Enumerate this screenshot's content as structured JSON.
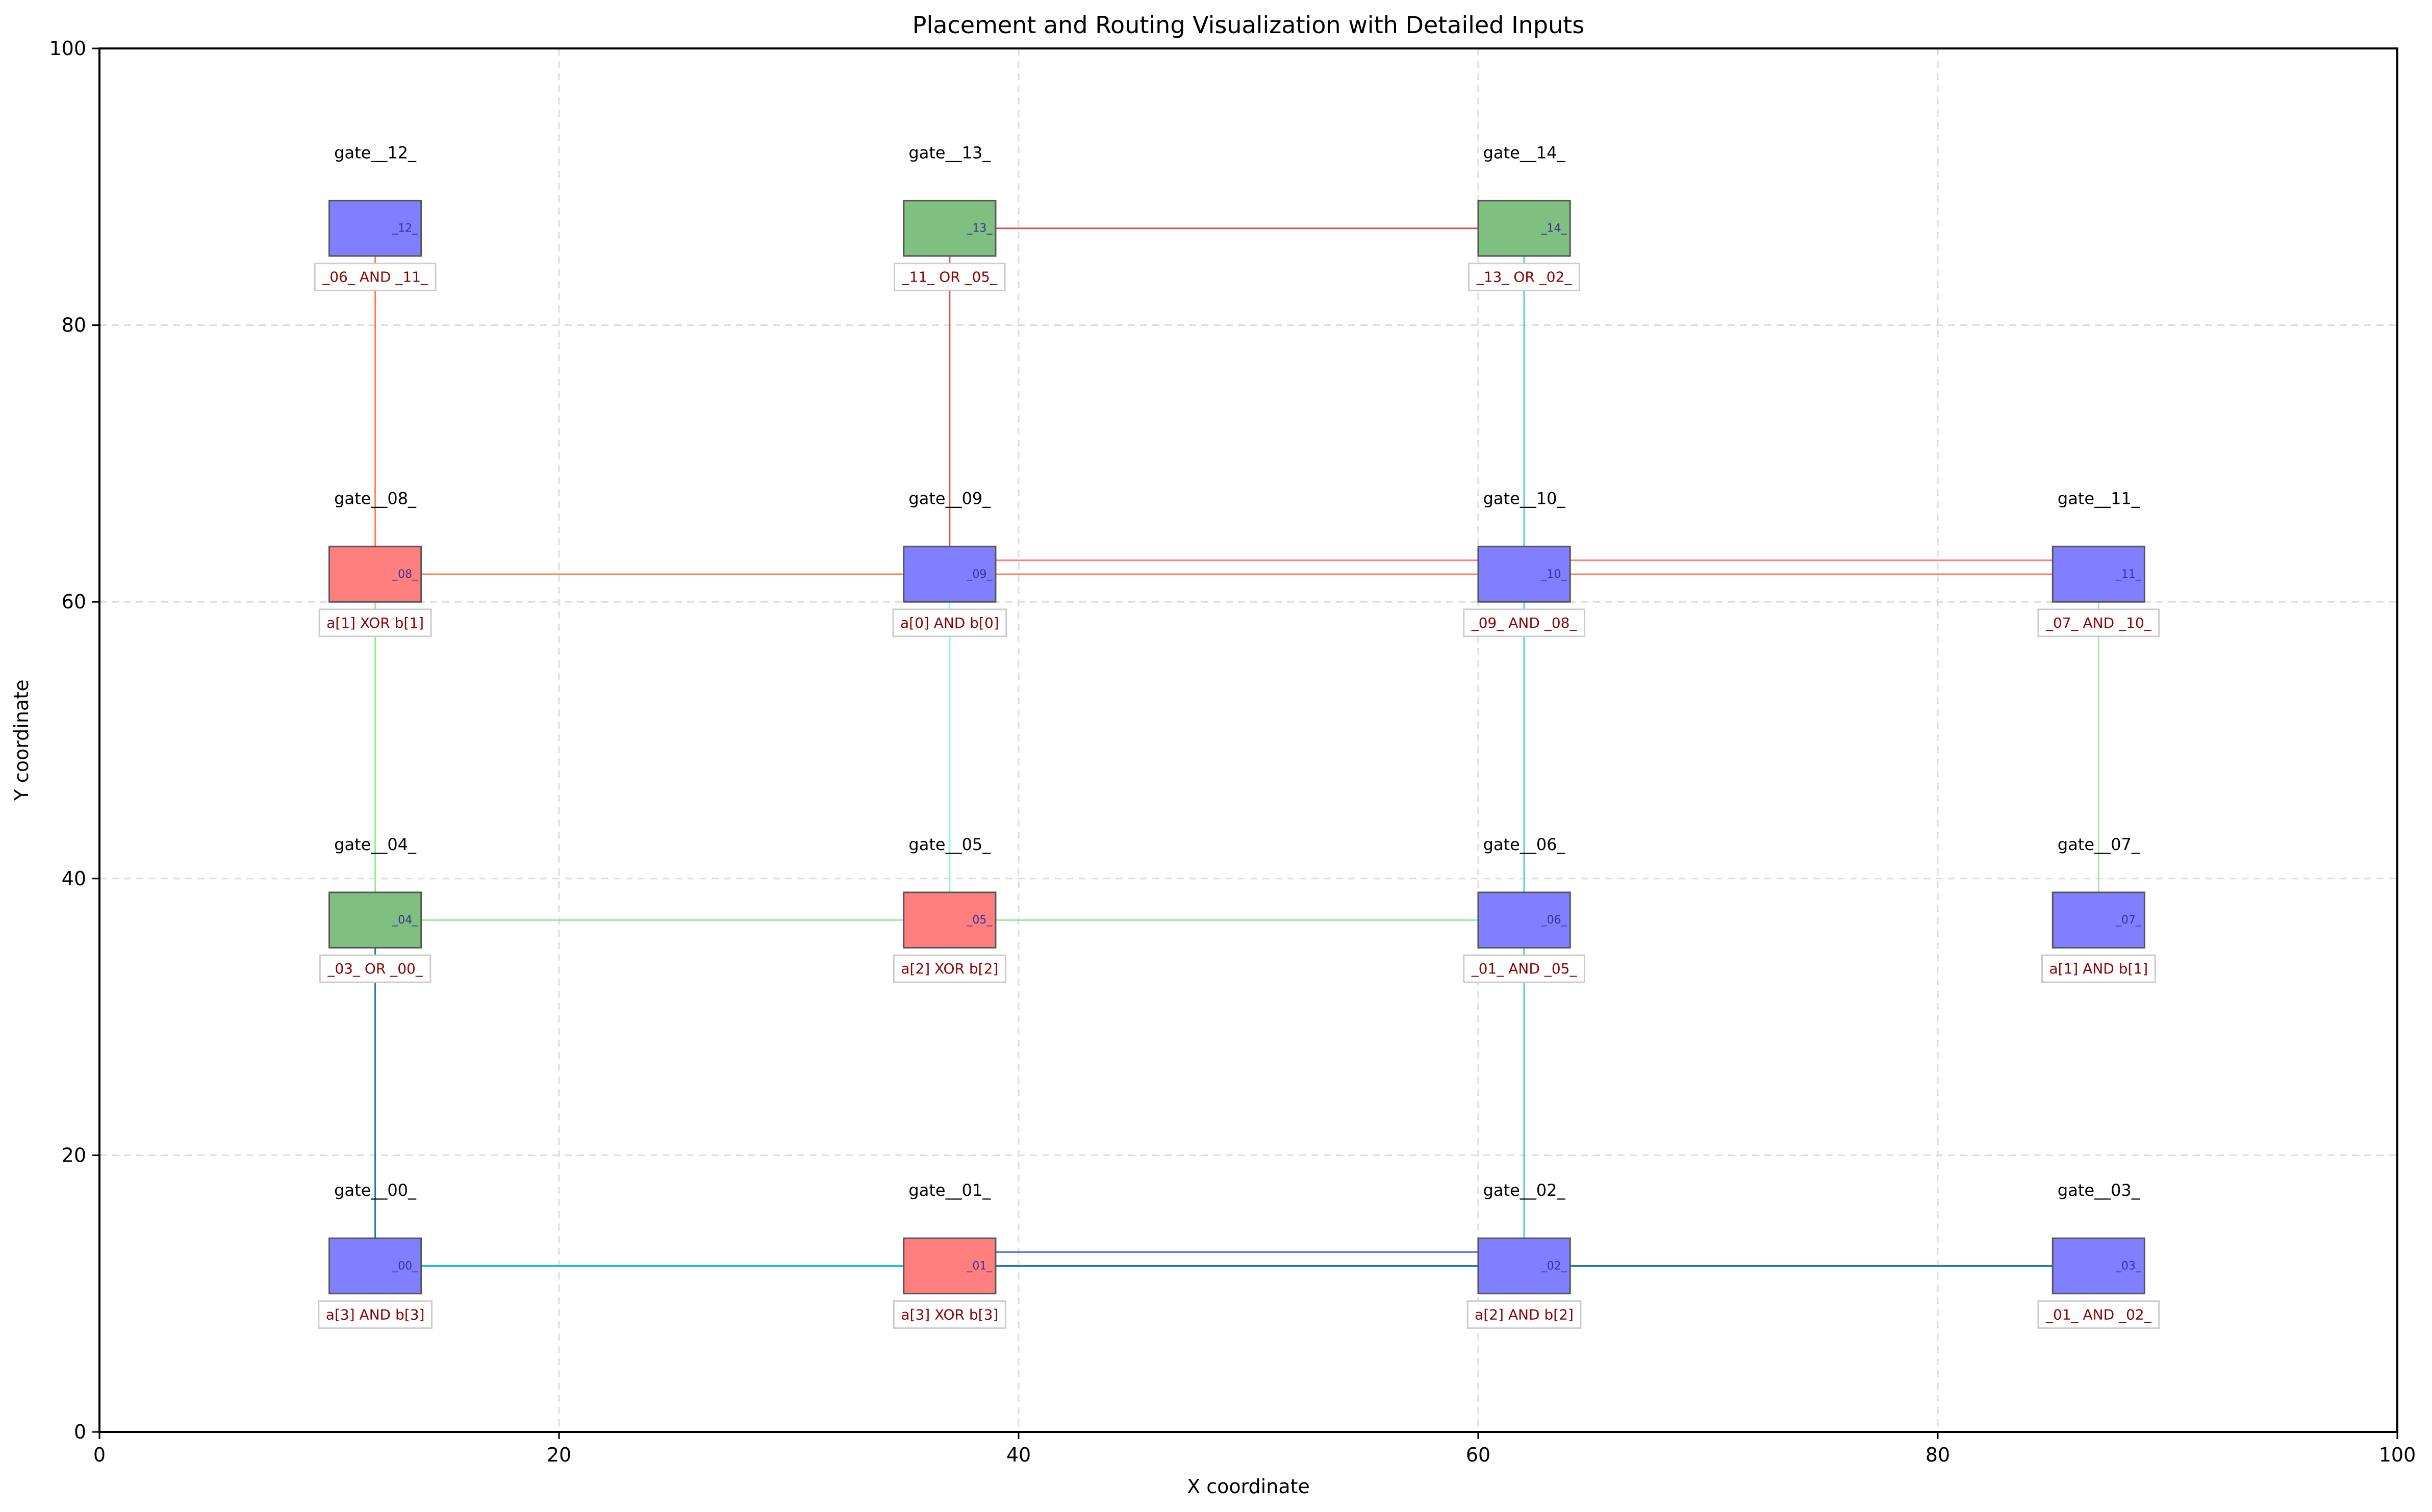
{
  "chart_data": {
    "type": "scatter",
    "title": "Placement and Routing Visualization with Detailed Inputs",
    "xlabel": "X coordinate",
    "ylabel": "Y coordinate",
    "xlim": [
      0,
      100
    ],
    "ylim": [
      0,
      100
    ],
    "xticks": [
      0,
      20,
      40,
      60,
      80,
      100
    ],
    "yticks": [
      0,
      20,
      40,
      60,
      80,
      100
    ],
    "grid": true,
    "colors": {
      "AND": "#7f7fff",
      "XOR": "#ff7f7f",
      "OR": "#7fbf7f",
      "label_text": "#8b0000"
    },
    "gates": [
      {
        "name": "gate__00_",
        "expr": "a[3] AND b[3]",
        "type": "AND",
        "x": 10,
        "y": 10,
        "pin": "_00_"
      },
      {
        "name": "gate__01_",
        "expr": "a[3] XOR b[3]",
        "type": "XOR",
        "x": 35,
        "y": 10,
        "pin": "_01_"
      },
      {
        "name": "gate__02_",
        "expr": "a[2] AND b[2]",
        "type": "AND",
        "x": 60,
        "y": 10,
        "pin": "_02_"
      },
      {
        "name": "gate__03_",
        "expr": "_01_ AND _02_",
        "type": "AND",
        "x": 85,
        "y": 10,
        "pin": "_03_"
      },
      {
        "name": "gate__04_",
        "expr": "_03_ OR _00_",
        "type": "OR",
        "x": 10,
        "y": 35,
        "pin": "_04_"
      },
      {
        "name": "gate__05_",
        "expr": "a[2] XOR b[2]",
        "type": "XOR",
        "x": 35,
        "y": 35,
        "pin": "_05_"
      },
      {
        "name": "gate__06_",
        "expr": "_01_ AND _05_",
        "type": "AND",
        "x": 60,
        "y": 35,
        "pin": "_06_"
      },
      {
        "name": "gate__07_",
        "expr": "a[1] AND b[1]",
        "type": "AND",
        "x": 85,
        "y": 35,
        "pin": "_07_"
      },
      {
        "name": "gate__08_",
        "expr": "a[1] XOR b[1]",
        "type": "XOR",
        "x": 10,
        "y": 60,
        "pin": "_08_"
      },
      {
        "name": "gate__09_",
        "expr": "a[0] AND b[0]",
        "type": "AND",
        "x": 35,
        "y": 60,
        "pin": "_09_"
      },
      {
        "name": "gate__10_",
        "expr": "_09_ AND _08_",
        "type": "AND",
        "x": 60,
        "y": 60,
        "pin": "_10_"
      },
      {
        "name": "gate__11_",
        "expr": "_07_ AND _10_",
        "type": "AND",
        "x": 85,
        "y": 60,
        "pin": "_11_"
      },
      {
        "name": "gate__12_",
        "expr": "_06_ AND _11_",
        "type": "AND",
        "x": 10,
        "y": 85,
        "pin": "_12_"
      },
      {
        "name": "gate__13_",
        "expr": "_11_ OR _05_",
        "type": "OR",
        "x": 35,
        "y": 85,
        "pin": "_13_"
      },
      {
        "name": "gate__14_",
        "expr": "_13_ OR _02_",
        "type": "OR",
        "x": 60,
        "y": 85,
        "pin": "_14_"
      }
    ],
    "nets": [
      {
        "color": "#1f77b4",
        "points": [
          [
            12,
            13
          ],
          [
            12,
            37
          ]
        ]
      },
      {
        "color": "#3aa3d8",
        "points": [
          [
            62,
            13
          ],
          [
            62,
            87
          ]
        ]
      },
      {
        "color": "#1f77b4",
        "points": [
          [
            62,
            12
          ],
          [
            62,
            37
          ]
        ]
      },
      {
        "color": "#17becf",
        "points": [
          [
            13,
            12
          ],
          [
            88,
            12
          ]
        ]
      },
      {
        "color": "#4169e1",
        "points": [
          [
            37,
            13
          ],
          [
            62,
            13
          ]
        ]
      },
      {
        "color": "#1f77b4",
        "points": [
          [
            38,
            12
          ],
          [
            88,
            12
          ]
        ]
      },
      {
        "color": "#5fcfdf",
        "points": [
          [
            62,
            12
          ],
          [
            62,
            87
          ]
        ]
      },
      {
        "color": "#90ee90",
        "points": [
          [
            12,
            37
          ],
          [
            12,
            62
          ]
        ]
      },
      {
        "color": "#90ee90",
        "points": [
          [
            12,
            37
          ],
          [
            63,
            37
          ]
        ]
      },
      {
        "color": "#7fffd4",
        "points": [
          [
            37,
            38
          ],
          [
            37,
            62
          ]
        ]
      },
      {
        "color": "#b0e0b0",
        "points": [
          [
            87,
            37
          ],
          [
            87,
            62
          ]
        ]
      },
      {
        "color": "#ff7f50",
        "points": [
          [
            12,
            62
          ],
          [
            88,
            62
          ]
        ]
      },
      {
        "color": "#fa8072",
        "points": [
          [
            37,
            63
          ],
          [
            88,
            63
          ]
        ]
      },
      {
        "color": "#ff7f50",
        "points": [
          [
            12,
            62
          ],
          [
            12,
            87
          ]
        ]
      },
      {
        "color": "#d9534f",
        "points": [
          [
            37,
            63
          ],
          [
            37,
            87
          ]
        ]
      },
      {
        "color": "#d9534f",
        "points": [
          [
            38,
            87
          ],
          [
            62,
            87
          ]
        ]
      }
    ]
  }
}
